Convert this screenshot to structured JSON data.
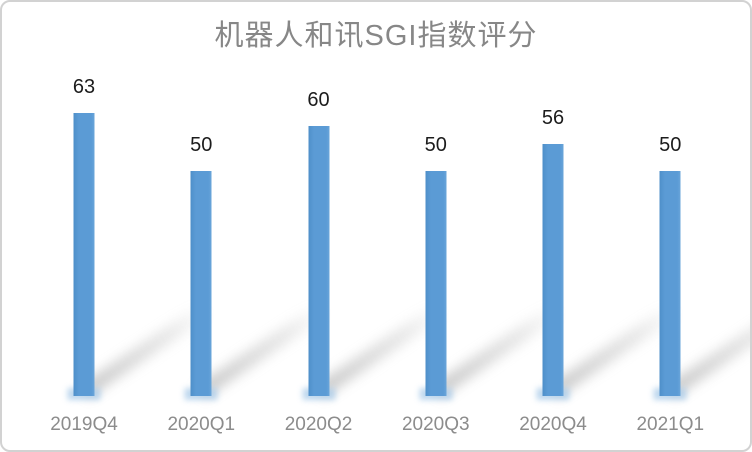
{
  "card": {
    "background": "#ffffff",
    "border_color": "#d2d2d2"
  },
  "chart_data": {
    "type": "bar",
    "title": "机器人和讯SGI指数评分",
    "categories": [
      "2019Q4",
      "2020Q1",
      "2020Q2",
      "2020Q3",
      "2020Q4",
      "2021Q1"
    ],
    "values": [
      63,
      50,
      60,
      50,
      56,
      50
    ],
    "xlabel": "",
    "ylabel": "",
    "ylim": [
      0,
      70
    ],
    "grid": false,
    "legend": false,
    "data_labels": true,
    "axes_visible": false,
    "bar_color": "#5b9bd5",
    "bar_glow_color": "#a9cbe9",
    "title_color": "#878787",
    "axis_label_color": "#8c8c8c",
    "value_label_color": "#1c1c1c"
  }
}
